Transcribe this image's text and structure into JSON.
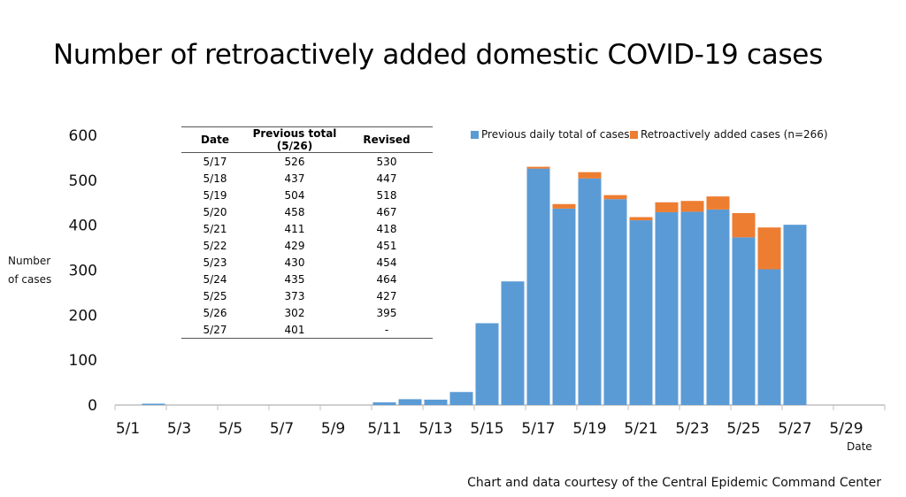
{
  "title": "Number of retroactively added domestic COVID-19 cases",
  "footer": "Chart and data courtesy of the Central Epidemic Command Center",
  "colors": {
    "previous": "#5b9bd5",
    "retro": "#ed7d31",
    "axis": "#bfbfbf"
  },
  "chart_data": {
    "type": "bar",
    "stacked": true,
    "title": "Number of retroactively added domestic COVID-19 cases",
    "xlabel": "Date",
    "ylabel": "Number of cases",
    "ylim": [
      0,
      600
    ],
    "yticks": [
      0,
      100,
      200,
      300,
      400,
      500,
      600
    ],
    "xtick_labels": [
      "5/1",
      "5/3",
      "5/5",
      "5/7",
      "5/9",
      "5/11",
      "5/13",
      "5/15",
      "5/17",
      "5/19",
      "5/21",
      "5/23",
      "5/25",
      "5/27",
      "5/29"
    ],
    "categories": [
      "5/1",
      "5/2",
      "5/3",
      "5/4",
      "5/5",
      "5/6",
      "5/7",
      "5/8",
      "5/9",
      "5/10",
      "5/11",
      "5/12",
      "5/13",
      "5/14",
      "5/15",
      "5/16",
      "5/17",
      "5/18",
      "5/19",
      "5/20",
      "5/21",
      "5/22",
      "5/23",
      "5/24",
      "5/25",
      "5/26",
      "5/27",
      "5/28",
      "5/29"
    ],
    "series": [
      {
        "name": "Previous daily total of cases",
        "values": [
          0,
          3,
          0,
          0,
          0,
          0,
          0,
          0,
          0,
          0,
          6,
          13,
          12,
          29,
          182,
          275,
          526,
          437,
          504,
          458,
          411,
          429,
          430,
          435,
          373,
          302,
          401,
          0,
          0
        ]
      },
      {
        "name": "Retroactively added cases (n=266)",
        "values": [
          0,
          0,
          0,
          0,
          0,
          0,
          0,
          0,
          0,
          0,
          0,
          0,
          0,
          0,
          0,
          0,
          4,
          10,
          14,
          9,
          7,
          22,
          24,
          29,
          54,
          93,
          0,
          0,
          0
        ]
      }
    ],
    "legend": {
      "position": "top-right",
      "items": [
        "Previous daily total of cases",
        "Retroactively added cases (n=266)"
      ]
    },
    "table": {
      "columns": [
        "Date",
        "Previous total (5/26)",
        "Revised"
      ],
      "rows": [
        [
          "5/17",
          "526",
          "530"
        ],
        [
          "5/18",
          "437",
          "447"
        ],
        [
          "5/19",
          "504",
          "518"
        ],
        [
          "5/20",
          "458",
          "467"
        ],
        [
          "5/21",
          "411",
          "418"
        ],
        [
          "5/22",
          "429",
          "451"
        ],
        [
          "5/23",
          "430",
          "454"
        ],
        [
          "5/24",
          "435",
          "464"
        ],
        [
          "5/25",
          "373",
          "427"
        ],
        [
          "5/26",
          "302",
          "395"
        ],
        [
          "5/27",
          "401",
          "-"
        ]
      ]
    }
  }
}
